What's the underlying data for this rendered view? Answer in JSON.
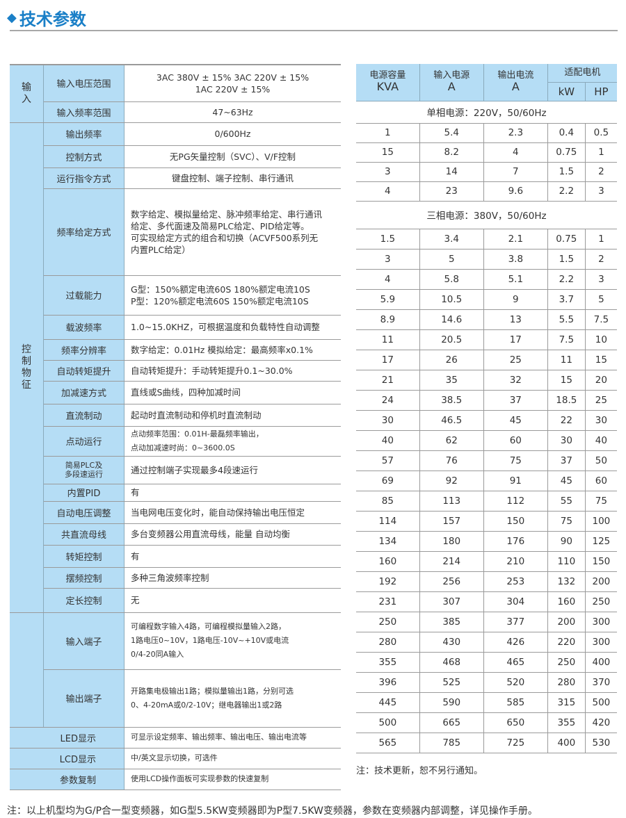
{
  "header": {
    "title": "技术参数",
    "icon": "diamond-icon",
    "accent": "#1a7fc7"
  },
  "spec": {
    "groups": {
      "input": "输入",
      "control": "控制物征"
    },
    "rows": [
      {
        "label": "输入电压范围",
        "lines": [
          "3AC 380V ± 15%   3AC 220V ± 15%",
          "1AC 220V ± 15%"
        ]
      },
      {
        "label": "输入频率范围",
        "lines": [
          "47~63Hz"
        ]
      },
      {
        "label": "输出频率",
        "lines": [
          "0/600Hz"
        ]
      },
      {
        "label": "控制方式",
        "lines": [
          "无PG矢量控制（SVC）、V/F控制"
        ]
      },
      {
        "label": "运行指令方式",
        "lines": [
          "键盘控制、端子控制、串行通讯"
        ]
      },
      {
        "label": "频率给定方式",
        "lines": [
          "数字给定、模拟量给定、脉冲频率给定、串行通讯",
          "给定、多代面速及简易PLC给定、PID给定等。",
          "可实现给定方式的组合和切换（ACVF500系列无",
          "内置PLC给定）"
        ]
      },
      {
        "label": "过载能力",
        "lines": [
          "G型：150%额定电流60S 180%额定电流10S",
          "P型：120%额定电流60S 150%额定电流10S"
        ]
      },
      {
        "label": "载波频率",
        "lines": [
          "1.0~15.0KHZ，可根据温度和负载特性自动调整"
        ]
      },
      {
        "label": "频率分辨率",
        "lines": [
          "数字给定：0.01Hz  模拟给定：最高频率x0.1%"
        ]
      },
      {
        "label": "自动转矩提升",
        "lines": [
          "自动转矩提升：手动转矩提升0.1~30.0%"
        ]
      },
      {
        "label": "加减速方式",
        "lines": [
          "直线或S曲线，四种加减时间"
        ]
      },
      {
        "label": "直流制动",
        "lines": [
          "起动时直流制动和停机时直流制动"
        ]
      },
      {
        "label": "点动运行",
        "lines": [
          "点动频率范围：0.01H-最磊频率输出，",
          "点动加减速时尚：0~3600.0S"
        ]
      },
      {
        "label": "简易PLC及",
        "label2": "多段速运行",
        "lines": [
          "通过控制端子实现最多4段速运行"
        ]
      },
      {
        "label": "内置PID",
        "lines": [
          "有"
        ]
      },
      {
        "label": "自动电压调整",
        "lines": [
          "当电网电压变化时，能自动保持输出电压恒定"
        ]
      },
      {
        "label": "共直流母线",
        "lines": [
          "多台变频器公用直流母线，能量 自动均衡"
        ]
      },
      {
        "label": "转矩控制",
        "lines": [
          "有"
        ]
      },
      {
        "label": "摆频控制",
        "lines": [
          "多种三角波频率控制"
        ]
      },
      {
        "label": "定长控制",
        "lines": [
          "无"
        ]
      },
      {
        "label": "输入端子",
        "lines": [
          "可编程数字输入4路，可编程模拟量输入2路，",
          "1路电压0~10V，1路电压-10V~+10V或电流",
          "0/4-20同A输入"
        ]
      },
      {
        "label": "输出端子",
        "lines": [
          "开路集电极输出1路；模拟量输出1路，分别可选",
          "0、4-20mA或0/2-10V；继电器输出1或2路"
        ]
      },
      {
        "label": "LED显示",
        "lines": [
          "可显示设定频率、输出频率、输出电压、输出电流等"
        ]
      },
      {
        "label": "LCD显示",
        "lines": [
          "中/英文显示切换，可选件"
        ]
      },
      {
        "label": "参数复制",
        "lines": [
          "使用LCD操作面板可实现参数的快速复制"
        ]
      }
    ]
  },
  "models": {
    "headers": {
      "capacity": "电源容量",
      "capacity_unit": "KVA",
      "input": "输入电源",
      "input_unit": "A",
      "output": "输出电流",
      "output_unit": "A",
      "motor": "适配电机",
      "kw": "kW",
      "hp": "HP"
    },
    "single_caption": "单相电源：220V，50/60Hz",
    "single": [
      [
        "1",
        "5.4",
        "2.3",
        "0.4",
        "0.5"
      ],
      [
        "15",
        "8.2",
        "4",
        "0.75",
        "1"
      ],
      [
        "3",
        "14",
        "7",
        "1.5",
        "2"
      ],
      [
        "4",
        "23",
        "9.6",
        "2.2",
        "3"
      ]
    ],
    "three_caption": "三相电源：380V，50/60Hz",
    "three": [
      [
        "1.5",
        "3.4",
        "2.1",
        "0.75",
        "1"
      ],
      [
        "3",
        "5",
        "3.8",
        "1.5",
        "2"
      ],
      [
        "4",
        "5.8",
        "5.1",
        "2.2",
        "3"
      ],
      [
        "5.9",
        "10.5",
        "9",
        "3.7",
        "5"
      ],
      [
        "8.9",
        "14.6",
        "13",
        "5.5",
        "7.5"
      ],
      [
        "11",
        "20.5",
        "17",
        "7.5",
        "10"
      ],
      [
        "17",
        "26",
        "25",
        "11",
        "15"
      ],
      [
        "21",
        "35",
        "32",
        "15",
        "20"
      ],
      [
        "24",
        "38.5",
        "37",
        "18.5",
        "25"
      ],
      [
        "30",
        "46.5",
        "45",
        "22",
        "30"
      ],
      [
        "40",
        "62",
        "60",
        "30",
        "40"
      ],
      [
        "57",
        "76",
        "75",
        "37",
        "50"
      ],
      [
        "69",
        "92",
        "91",
        "45",
        "60"
      ],
      [
        "85",
        "113",
        "112",
        "55",
        "75"
      ],
      [
        "114",
        "157",
        "150",
        "75",
        "100"
      ],
      [
        "134",
        "180",
        "176",
        "90",
        "125"
      ],
      [
        "160",
        "214",
        "210",
        "110",
        "150"
      ],
      [
        "192",
        "256",
        "253",
        "132",
        "200"
      ],
      [
        "231",
        "307",
        "304",
        "160",
        "250"
      ],
      [
        "250",
        "385",
        "377",
        "200",
        "300"
      ],
      [
        "280",
        "430",
        "426",
        "220",
        "300"
      ],
      [
        "355",
        "468",
        "465",
        "250",
        "400"
      ],
      [
        "396",
        "525",
        "520",
        "280",
        "370"
      ],
      [
        "445",
        "590",
        "585",
        "315",
        "500"
      ],
      [
        "500",
        "665",
        "650",
        "355",
        "420"
      ],
      [
        "565",
        "785",
        "725",
        "400",
        "530"
      ]
    ],
    "note": "注：技术更新，恕不另行通知。"
  },
  "footer_note": "注：以上机型均为G/P合一型变频器，如G型5.5KW变频器即为P型7.5KW变频器，参数在变频器内部调整，详见操作手册。"
}
